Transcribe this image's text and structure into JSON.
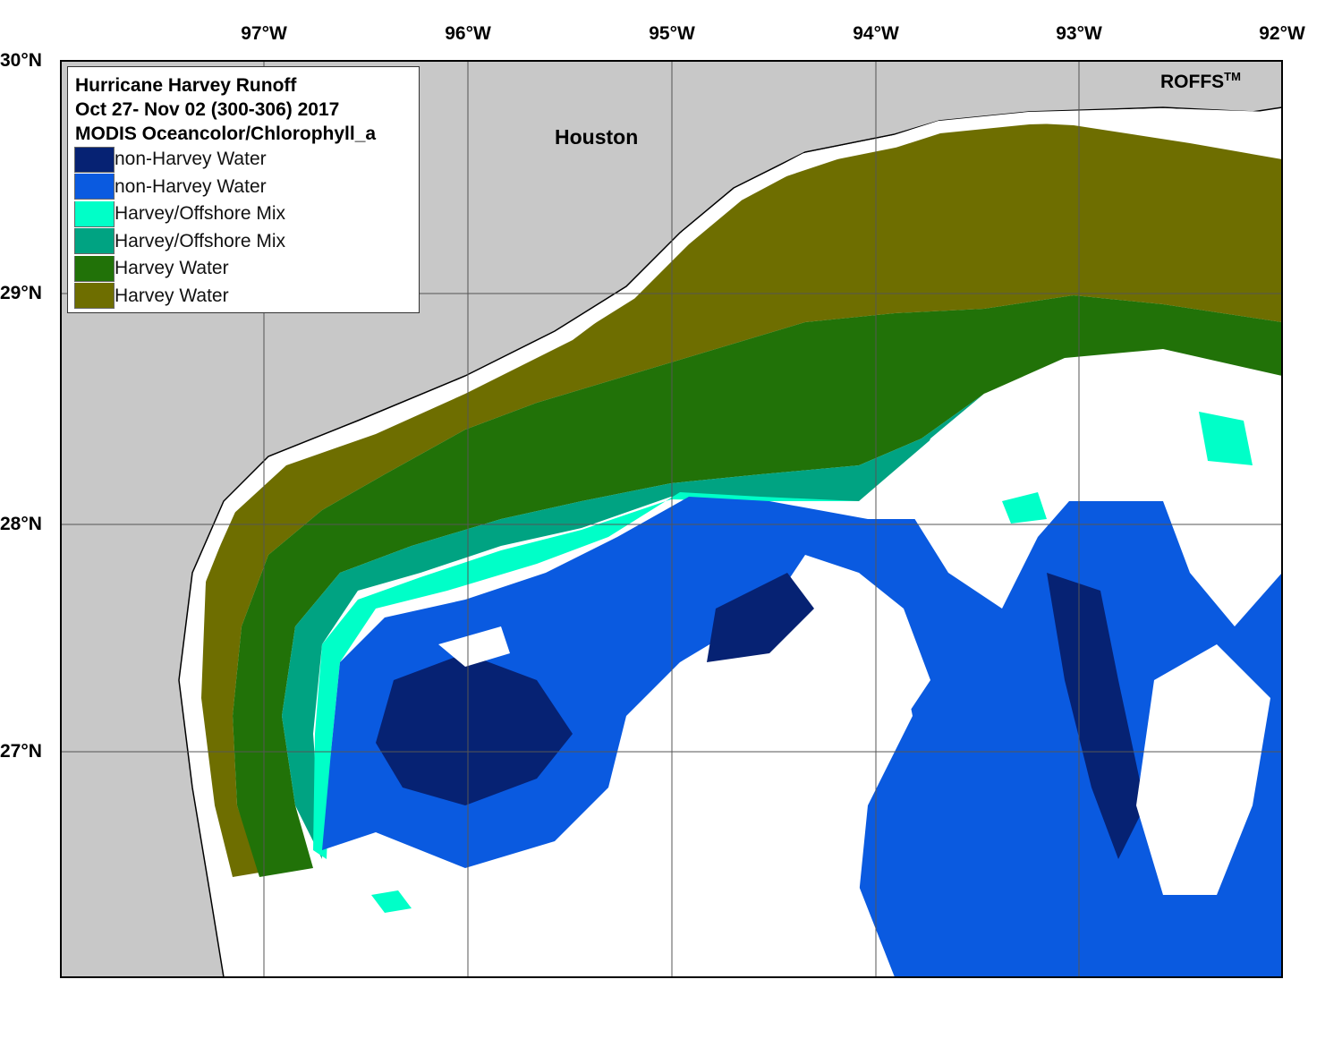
{
  "legend": {
    "title_lines": [
      "Hurricane Harvey Runoff",
      "Oct 27- Nov 02 (300-306) 2017",
      "MODIS Oceancolor/Chlorophyll_a"
    ],
    "items": [
      {
        "label": "non-Harvey Water",
        "color": "#062273"
      },
      {
        "label": "non-Harvey Water",
        "color": "#0a5ae0"
      },
      {
        "label": "Harvey/Offshore Mix",
        "color": "#00ffc8"
      },
      {
        "label": "Harvey/Offshore Mix",
        "color": "#00a382"
      },
      {
        "label": "Harvey Water",
        "color": "#217208"
      },
      {
        "label": "Harvey Water",
        "color": "#6e6e00"
      }
    ]
  },
  "axes": {
    "longitude_labels": [
      "97°W",
      "96°W",
      "95°W",
      "94°W",
      "93°W",
      "92°W"
    ],
    "latitude_labels": [
      "30°N",
      "29°N",
      "28°N",
      "27°N"
    ]
  },
  "place_label": "Houston",
  "brand": {
    "name": "ROFFS",
    "mark": "TM"
  },
  "colors": {
    "land": "#c8c8c8",
    "cloud": "#ffffff",
    "grid": "#555555"
  }
}
